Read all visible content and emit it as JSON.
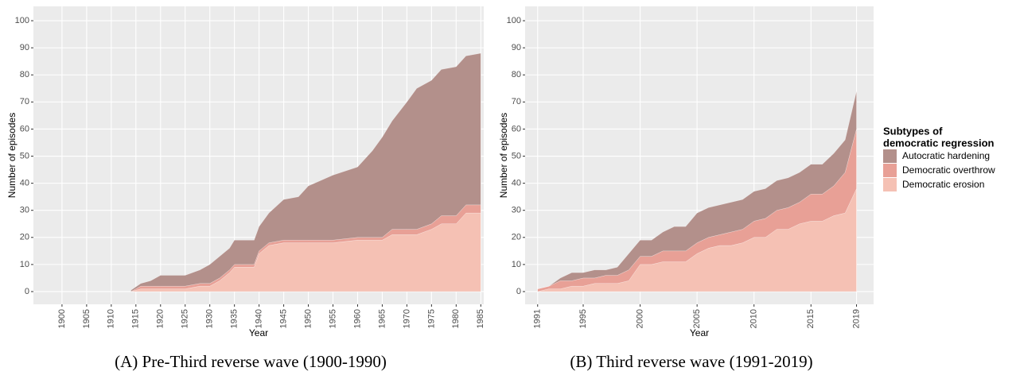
{
  "chart_data": [
    {
      "type": "area",
      "stacked": true,
      "xlabel": "Year",
      "ylabel": "Number of episodes",
      "caption": "(A) Pre-Third reverse wave (1900-1990)",
      "x": [
        1914,
        1916,
        1918,
        1920,
        1925,
        1928,
        1930,
        1932,
        1934,
        1935,
        1939,
        1940,
        1942,
        1945,
        1948,
        1950,
        1955,
        1960,
        1963,
        1965,
        1967,
        1970,
        1972,
        1975,
        1977,
        1980,
        1982,
        1985
      ],
      "series": [
        {
          "name": "Autocratic hardening",
          "color": "#b3908b",
          "values": [
            0.5,
            1,
            2,
            4,
            4,
            5,
            7,
            8,
            8,
            9,
            9,
            9,
            11,
            15,
            16,
            20,
            24,
            26,
            32,
            37,
            40,
            47,
            52,
            53,
            54,
            55,
            55,
            56
          ]
        },
        {
          "name": "Democratic overthrow",
          "color": "#e8a096",
          "values": [
            0,
            1,
            1,
            1,
            1,
            1,
            1,
            1,
            1,
            1,
            1,
            1,
            1,
            1,
            1,
            1,
            1,
            1,
            1,
            1,
            2,
            2,
            2,
            2,
            3,
            3,
            3,
            3
          ]
        },
        {
          "name": "Democratic erosion",
          "color": "#f5c1b4",
          "values": [
            0,
            1,
            1,
            1,
            1,
            2,
            2,
            4,
            7,
            9,
            9,
            14,
            17,
            18,
            18,
            18,
            18,
            19,
            19,
            19,
            21,
            21,
            21,
            23,
            25,
            25,
            29,
            29
          ]
        }
      ],
      "xlim": [
        1894.2,
        1985.6
      ],
      "ylim": [
        -4.7,
        105.3
      ],
      "xticks": [
        1900,
        1905,
        1910,
        1915,
        1920,
        1925,
        1930,
        1935,
        1940,
        1945,
        1950,
        1955,
        1960,
        1965,
        1970,
        1975,
        1980,
        1985
      ],
      "yticks": [
        0,
        10,
        20,
        30,
        40,
        50,
        60,
        70,
        80,
        90,
        100
      ],
      "grid": true
    },
    {
      "type": "area",
      "stacked": true,
      "xlabel": "Year",
      "ylabel": "Number of episodes",
      "caption": "(B) Third reverse wave (1991-2019)",
      "legend_title": [
        "Subtypes of",
        "democratic regression"
      ],
      "legend": "right",
      "x": [
        1991,
        1992,
        1993,
        1994,
        1995,
        1996,
        1997,
        1998,
        1999,
        2000,
        2001,
        2002,
        2003,
        2004,
        2005,
        2006,
        2007,
        2008,
        2009,
        2010,
        2011,
        2012,
        2013,
        2014,
        2015,
        2016,
        2017,
        2018,
        2019
      ],
      "series": [
        {
          "name": "Autocratic hardening",
          "color": "#b3908b",
          "values": [
            0,
            0,
            1,
            3,
            2,
            3,
            2,
            3,
            6,
            6,
            6,
            7,
            9,
            9,
            11,
            11,
            11,
            11,
            11,
            11,
            11,
            11,
            11,
            11,
            11,
            11,
            12,
            12,
            14
          ]
        },
        {
          "name": "Democratic overthrow",
          "color": "#e8a096",
          "values": [
            1,
            1,
            3,
            2,
            3,
            2,
            3,
            3,
            4,
            3,
            3,
            4,
            4,
            4,
            4,
            4,
            4,
            5,
            5,
            6,
            7,
            7,
            8,
            8,
            10,
            10,
            11,
            15,
            22
          ]
        },
        {
          "name": "Democratic erosion",
          "color": "#f5c1b4",
          "values": [
            0,
            1,
            1,
            2,
            2,
            3,
            3,
            3,
            4,
            10,
            10,
            11,
            11,
            11,
            14,
            16,
            17,
            17,
            18,
            20,
            20,
            23,
            23,
            25,
            26,
            26,
            28,
            29,
            38
          ]
        }
      ],
      "xlim": [
        1989.9,
        2020.5
      ],
      "ylim": [
        -4.7,
        105.3
      ],
      "xticks": [
        1991,
        1995,
        2000,
        2005,
        2010,
        2015,
        2019
      ],
      "yticks": [
        0,
        10,
        20,
        30,
        40,
        50,
        60,
        70,
        80,
        90,
        100
      ],
      "grid": true
    }
  ]
}
